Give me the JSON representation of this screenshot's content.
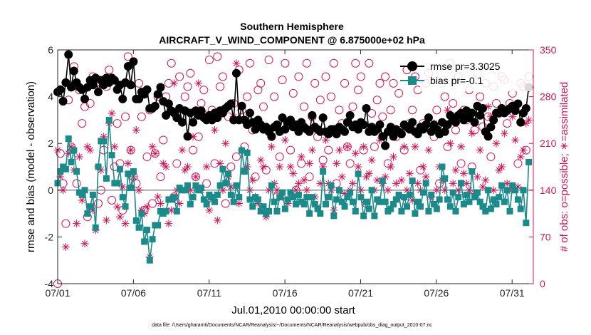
{
  "chart_data": {
    "type": "line",
    "title": "Southern Hemisphere",
    "subtitle": "AIRCRAFT_V_WIND_COMPONENT @ 6.875000e+02 hPa",
    "xlabel": "Jul.01,2010 00:00:00 start",
    "ylabel": "rmse and bias (model - observation)",
    "y2label": "# of obs: o=possible; ∗=assimilated",
    "footnote": "data file: /Users/gharamti/Documents/NCAR/Reanalysis/~/Documents/NCAR/Reanalysis/webpub/obs_diag_output_2010-07.nc",
    "xlim": [
      0,
      31.4
    ],
    "ylim": [
      -4,
      6
    ],
    "y2lim": [
      0,
      350
    ],
    "x_ticks": [
      0,
      5,
      10,
      15,
      20,
      25,
      30
    ],
    "x_tick_labels": [
      "07/01",
      "07/06",
      "07/11",
      "07/16",
      "07/21",
      "07/26",
      "07/31"
    ],
    "y_ticks": [
      -4,
      -2,
      0,
      2,
      4,
      6
    ],
    "y2_ticks": [
      0,
      70,
      140,
      210,
      280,
      350
    ],
    "legend_position": "top-right",
    "colors": {
      "rmse": "#000000",
      "bias": "#1a8a8a",
      "obs": "#d4145a",
      "zero_line": "#aaaaaa"
    },
    "series": [
      {
        "name": "rmse pr=3.3025",
        "axis": "left",
        "marker": "circle",
        "values": [
          4.2,
          4.3,
          3.8,
          4.6,
          5.8,
          4.4,
          5.1,
          4.6,
          4.4,
          4.3,
          3.9,
          4.4,
          4.7,
          4.5,
          4.8,
          4.2,
          4.7,
          4.5,
          4.8,
          4.6,
          4.8,
          4.7,
          4.3,
          4.5,
          3.9,
          4.6,
          5.3,
          4.5,
          5.5,
          3.9,
          3.9,
          4.2,
          4.1,
          4.3,
          3.5,
          3.5,
          3.6,
          4.1,
          4.4,
          3.8,
          3.2,
          3.7,
          3.4,
          3.3,
          3.1,
          3.5,
          2.9,
          3.4,
          2.3,
          3.3,
          2.9,
          3.4,
          3.2,
          3.4,
          3.1,
          3.0,
          3.2,
          3.0,
          3.3,
          3.1,
          3.4,
          3.3,
          3.5,
          3.6,
          3.7,
          3.0,
          5.0,
          3.0,
          3.6,
          3.0,
          2.8,
          3.3,
          2.9,
          2.6,
          3.0,
          2.8,
          2.6,
          2.7,
          2.5,
          2.3,
          2.7,
          2.8,
          2.5,
          3.1,
          2.6,
          2.9,
          3.0,
          2.7,
          2.8,
          2.5,
          2.9,
          2.7,
          2.6,
          2.5,
          3.2,
          2.7,
          2.6,
          2.5,
          3.1,
          2.5,
          2.4,
          2.6,
          2.6,
          2.4,
          2.7,
          2.6,
          2.5,
          2.9,
          3.2,
          2.7,
          2.8,
          2.6,
          2.9,
          2.8,
          3.5,
          2.5,
          2.7,
          2.5,
          2.6,
          2.8,
          2.3,
          1.9,
          2.5,
          2.7,
          2.3,
          2.6,
          2.5,
          2.4,
          2.8,
          2.7,
          2.6,
          2.9,
          2.5,
          2.4,
          2.7,
          2.6,
          2.8,
          3.1,
          2.5,
          2.8,
          2.6,
          2.4,
          2.9,
          2.5,
          2.8,
          3.2,
          3.0,
          2.9,
          3.2,
          3.3,
          3.0,
          3.4,
          3.1,
          3.3,
          2.9,
          3.6,
          3.2,
          3.5,
          2.5,
          2.3,
          2.7,
          3.0,
          3.3,
          3.3,
          3.5,
          3.3,
          3.4,
          3.5,
          3.6,
          3.4,
          3.7,
          2.9,
          3.3,
          3.5,
          4.4
        ]
      },
      {
        "name": "bias pr=-0.1",
        "axis": "left",
        "marker": "square",
        "values": [
          0.3,
          0.8,
          1.0,
          0.9,
          2.2,
          1.2,
          1.7,
          0.8,
          -0.1,
          -0.2,
          0.0,
          -1.0,
          -0.7,
          -0.2,
          -1.6,
          1.0,
          2.1,
          2.1,
          0.5,
          3.0,
          1.5,
          0.3,
          0.3,
          0.9,
          -0.3,
          -0.7,
          0.7,
          0.1,
          0.8,
          -1.3,
          -1.6,
          -1.0,
          -2.2,
          -1.7,
          -3.0,
          -2.1,
          -1.5,
          -1.5,
          -0.9,
          -1.0,
          -0.9,
          -0.4,
          -0.4,
          -0.3,
          -0.9,
          0.1,
          0.0,
          0.0,
          0.2,
          -0.6,
          -0.3,
          0.2,
          0.0,
          0.1,
          -0.4,
          -0.6,
          -0.2,
          -0.3,
          -0.5,
          -0.2,
          0.2,
          0.9,
          0.3,
          0.7,
          -0.2,
          -0.5,
          0.2,
          -0.3,
          1.7,
          0.8,
          1.6,
          -0.4,
          -0.7,
          -0.3,
          -0.4,
          -0.9,
          -0.7,
          -1.0,
          -0.9,
          0.2,
          -0.5,
          -0.9,
          -0.3,
          -0.1,
          -0.8,
          -0.4,
          -0.1,
          -0.3,
          -0.6,
          -0.2,
          -0.5,
          -0.6,
          -0.3,
          -1.0,
          -0.3,
          -0.6,
          -0.8,
          -1.0,
          0.8,
          -0.6,
          -0.3,
          0.2,
          -1.1,
          -0.4,
          0.0,
          -0.5,
          -0.7,
          -0.3,
          -0.1,
          -0.5,
          -0.9,
          0.7,
          -0.3,
          -1.1,
          -0.5,
          -0.8,
          0.0,
          -1.1,
          -0.4,
          -0.5,
          0.4,
          -0.5,
          -0.9,
          -0.8,
          -0.6,
          -0.4,
          -0.2,
          -0.9,
          -0.3,
          -0.7,
          -0.2,
          0.4,
          -1.0,
          -0.5,
          -0.7,
          -0.1,
          0.3,
          -0.9,
          -0.2,
          -0.6,
          -0.8,
          -0.4,
          1.0,
          0.5,
          -0.4,
          -0.7,
          -0.1,
          -0.9,
          -0.3,
          0.3,
          -0.6,
          -0.2,
          -0.5,
          0.8,
          -0.3,
          -0.1,
          -0.5,
          -0.7,
          -0.9,
          0.0,
          -0.8,
          -0.4,
          -0.6,
          -0.3,
          0.2,
          -0.5,
          0.0,
          -0.9,
          0.2,
          0.0,
          -0.4,
          -0.8,
          0.0,
          -1.4,
          1.2
        ]
      },
      {
        "name": "# possible",
        "axis": "right",
        "marker": "open-circle",
        "values": [
          0,
          195,
          150,
          90,
          275,
          205,
          325,
          150,
          290,
          240,
          265,
          100,
          270,
          310,
          300,
          120,
          140,
          200,
          295,
          320,
          125,
          175,
          240,
          180,
          110,
          250,
          340,
          200,
          160,
          150,
          300,
          250,
          110,
          190,
          260,
          120,
          195,
          280,
          160,
          215,
          280,
          300,
          330,
          130,
          180,
          310,
          250,
          280,
          295,
          315,
          200,
          160,
          220,
          270,
          290,
          150,
          335,
          260,
          180,
          340,
          295,
          310,
          120,
          250,
          175,
          270,
          190,
          320,
          260,
          205,
          280,
          330,
          230,
          160,
          290,
          300,
          265,
          170,
          335,
          220,
          280,
          130,
          190,
          305,
          330,
          240,
          200,
          285,
          140,
          310,
          180,
          265,
          330,
          160,
          250,
          300,
          220,
          275,
          185,
          310,
          200,
          280,
          330,
          150,
          260,
          240,
          300,
          205,
          180,
          265,
          330,
          290,
          310,
          200,
          120,
          330,
          255,
          205,
          275,
          300,
          250,
          310,
          180,
          260,
          300,
          220,
          285,
          230,
          200,
          320,
          240,
          260,
          310,
          290,
          170,
          240,
          300,
          315,
          230,
          220,
          260,
          150,
          300,
          280,
          205,
          330,
          270,
          230,
          310,
          180,
          260,
          245,
          290,
          175,
          230,
          315,
          280,
          235,
          300,
          250,
          190,
          295,
          270,
          255,
          310,
          305,
          240,
          270,
          285,
          260,
          180,
          300,
          295,
          200,
          310
        ]
      },
      {
        "name": "# assimilated",
        "axis": "right",
        "marker": "asterisk",
        "values": [
          200,
          160,
          140,
          55,
          195,
          205,
          170,
          90,
          190,
          125,
          60,
          205,
          200,
          110,
          80,
          175,
          170,
          220,
          95,
          240,
          255,
          205,
          115,
          100,
          145,
          90,
          180,
          200,
          160,
          230,
          140,
          110,
          105,
          115,
          40,
          205,
          195,
          130,
          120,
          180,
          175,
          90,
          110,
          300,
          140,
          120,
          200,
          170,
          175,
          140,
          220,
          160,
          300,
          140,
          255,
          175,
          110,
          125,
          230,
          95,
          180,
          140,
          210,
          160,
          145,
          250,
          330,
          120,
          200,
          170,
          175,
          140,
          155,
          130,
          120,
          185,
          175,
          100,
          140,
          205,
          150,
          140,
          175,
          130,
          215,
          120,
          175,
          165,
          140,
          150,
          190,
          155,
          140,
          180,
          200,
          130,
          115,
          150,
          175,
          215,
          150,
          140,
          110,
          180,
          200,
          160,
          135,
          205,
          140,
          150,
          195,
          175,
          140,
          205,
          160,
          165,
          185,
          140,
          155,
          215,
          150,
          160,
          140,
          175,
          190,
          150,
          130,
          155,
          205,
          140,
          165,
          125,
          205,
          150,
          140,
          175,
          160,
          200,
          130,
          240,
          140,
          175,
          155,
          140,
          260,
          210,
          150,
          170,
          140,
          205,
          165,
          150,
          140,
          225,
          135,
          160,
          200,
          145,
          155,
          265,
          250,
          140,
          210,
          170,
          175,
          225,
          150,
          140,
          250,
          215,
          145,
          190,
          200,
          240,
          245
        ]
      }
    ]
  }
}
